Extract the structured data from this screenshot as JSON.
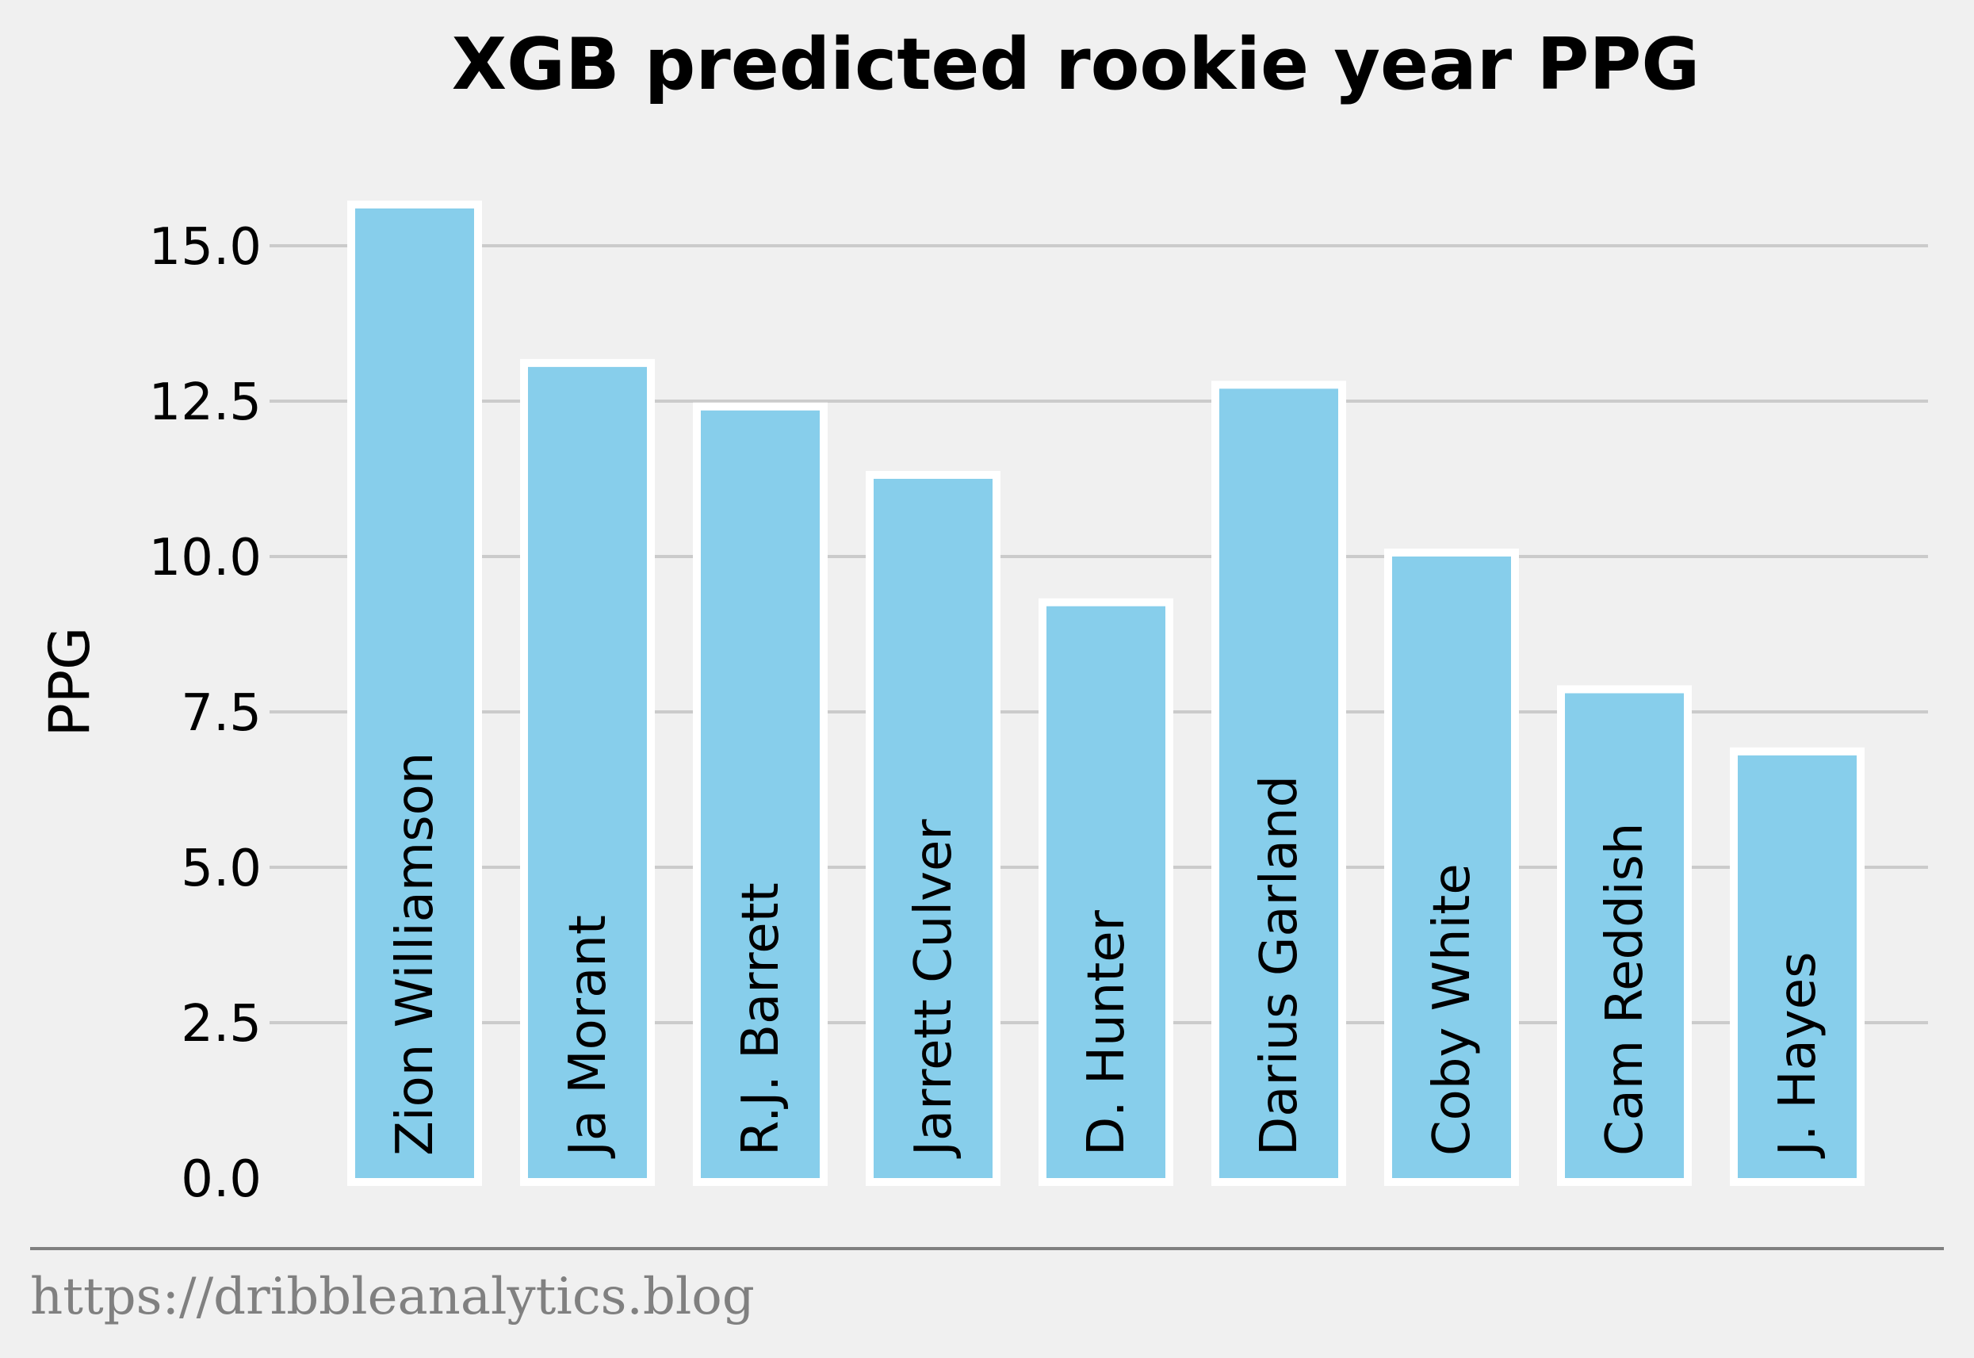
{
  "chart_data": {
    "type": "bar",
    "title": "XGB predicted rookie year PPG",
    "xlabel": "",
    "ylabel": "PPG",
    "ylim": [
      0,
      16.5
    ],
    "yticks": [
      0.0,
      2.5,
      5.0,
      7.5,
      10.0,
      12.5,
      15.0
    ],
    "ytick_labels": [
      "0.0",
      "2.5",
      "5.0",
      "7.5",
      "10.0",
      "12.5",
      "15.0"
    ],
    "grid": "horizontal",
    "categories": [
      "Zion Williamson",
      "Ja Morant",
      "R.J. Barrett",
      "Jarrett Culver",
      "D. Hunter",
      "Darius Garland",
      "Coby White",
      "Cam Reddish",
      "J. Hayes"
    ],
    "values": [
      15.6,
      13.05,
      12.35,
      11.25,
      9.2,
      12.7,
      10.0,
      7.8,
      6.8
    ],
    "bar_labels_inside": true,
    "colors": {
      "bar_fill": "#87ceeb",
      "bar_edge": "#ffffff",
      "background": "#f0f0f0",
      "grid": "#cbcbcb",
      "source": "#808080"
    }
  },
  "source": "https://dribbleanalytics.blog"
}
